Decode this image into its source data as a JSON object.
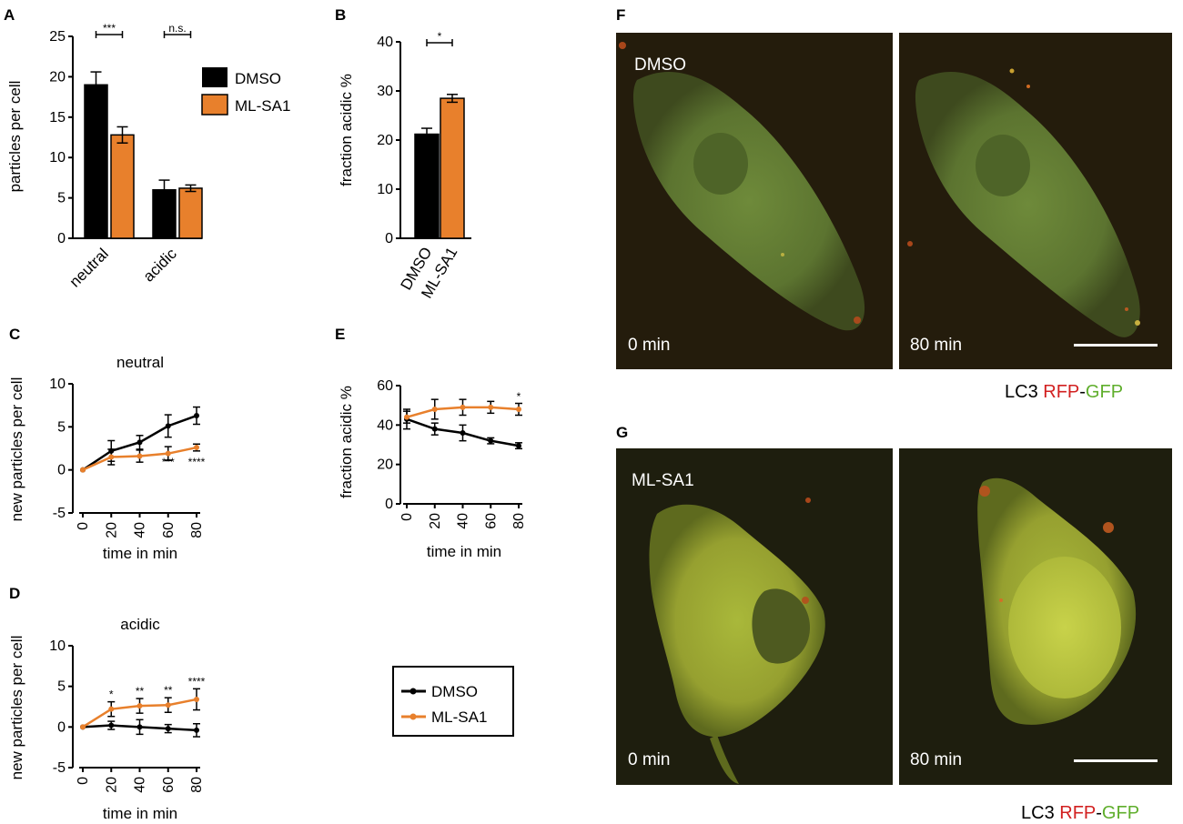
{
  "panels": {
    "A": {
      "label": "A",
      "chart_data": {
        "type": "bar",
        "categories": [
          "neutral",
          "acidic"
        ],
        "series": [
          {
            "name": "DMSO",
            "values": [
              19.0,
              6.0
            ],
            "errors": [
              1.6,
              1.2
            ]
          },
          {
            "name": "ML-SA1",
            "values": [
              12.8,
              6.2
            ],
            "errors": [
              1.0,
              0.4
            ]
          }
        ],
        "ylabel": "particles per cell",
        "ylim": [
          0,
          25
        ],
        "yticks": [
          0,
          5,
          10,
          15,
          20,
          25
        ],
        "significance": [
          "***",
          "n.s."
        ],
        "legend": "right"
      }
    },
    "B": {
      "label": "B",
      "chart_data": {
        "type": "bar",
        "categories": [
          "DMSO",
          "ML-SA1"
        ],
        "values": [
          21.2,
          28.5
        ],
        "errors": [
          1.2,
          0.8
        ],
        "ylabel": "fraction acidic %",
        "ylim": [
          0,
          40
        ],
        "yticks": [
          0,
          10,
          20,
          30,
          40
        ],
        "significance": [
          "*"
        ]
      }
    },
    "C": {
      "label": "C",
      "chart_data": {
        "type": "line",
        "title": "neutral",
        "x": [
          0,
          20,
          40,
          60,
          80
        ],
        "series": [
          {
            "name": "DMSO",
            "values": [
              0,
              2.2,
              3.2,
              5.1,
              6.3
            ],
            "errors": [
              0,
              1.2,
              0.8,
              1.3,
              1.0
            ]
          },
          {
            "name": "ML-SA1",
            "values": [
              0,
              1.5,
              1.6,
              1.9,
              2.6
            ],
            "errors": [
              0,
              0.9,
              0.7,
              0.8,
              0.4
            ]
          }
        ],
        "xlabel": "time in min",
        "ylabel": "new particles per cell",
        "ylim": [
          -5,
          10
        ],
        "yticks": [
          -5,
          0,
          5,
          10
        ],
        "annotations": [
          {
            "x": 60,
            "text": "***"
          },
          {
            "x": 80,
            "text": "****"
          }
        ]
      }
    },
    "D": {
      "label": "D",
      "chart_data": {
        "type": "line",
        "title": "acidic",
        "x": [
          0,
          20,
          40,
          60,
          80
        ],
        "series": [
          {
            "name": "DMSO",
            "values": [
              0,
              0.2,
              0,
              -0.2,
              -0.4
            ],
            "errors": [
              0,
              0.5,
              0.9,
              0.5,
              0.8
            ]
          },
          {
            "name": "ML-SA1",
            "values": [
              0,
              2.2,
              2.6,
              2.7,
              3.4
            ],
            "errors": [
              0,
              0.9,
              0.9,
              0.9,
              1.3
            ]
          }
        ],
        "xlabel": "time in min",
        "ylabel": "new particles per cell",
        "ylim": [
          -5,
          10
        ],
        "yticks": [
          -5,
          0,
          5,
          10
        ],
        "annotations": [
          {
            "x": 20,
            "text": "*"
          },
          {
            "x": 40,
            "text": "**"
          },
          {
            "x": 60,
            "text": "**"
          },
          {
            "x": 80,
            "text": "****"
          }
        ]
      }
    },
    "E": {
      "label": "E",
      "chart_data": {
        "type": "line",
        "x": [
          0,
          20,
          40,
          60,
          80
        ],
        "series": [
          {
            "name": "DMSO",
            "values": [
              43,
              38,
              36,
              32,
              29.5
            ],
            "errors": [
              5,
              3,
              4,
              1.5,
              1.5
            ]
          },
          {
            "name": "ML-SA1",
            "values": [
              44,
              48,
              49,
              49,
              48
            ],
            "errors": [
              3,
              5,
              4,
              3,
              3
            ]
          }
        ],
        "xlabel": "time in min",
        "ylabel": "fraction acidic %",
        "ylim": [
          0,
          60
        ],
        "yticks": [
          0,
          20,
          40,
          60
        ],
        "annotations": [
          {
            "x": 80,
            "text": "*"
          }
        ]
      }
    },
    "legend": {
      "entries": [
        "DMSO",
        "ML-SA1"
      ]
    },
    "F": {
      "label": "F",
      "condition": "DMSO",
      "time_left": "0 min",
      "time_right": "80 min",
      "caption_lc3": "LC3 ",
      "caption_rfp": "RFP",
      "caption_dash": "-",
      "caption_gfp": "GFP"
    },
    "G": {
      "label": "G",
      "condition": "ML-SA1",
      "time_left": "0 min",
      "time_right": "80 min",
      "caption_lc3": "LC3 ",
      "caption_rfp": "RFP",
      "caption_dash": "-",
      "caption_gfp": "GFP"
    }
  },
  "colors": {
    "dmso": "#000000",
    "mlsa1": "#e8802c",
    "rfp": "#d22020",
    "gfp": "#5fae2c",
    "micro_bg": "#231c0e"
  }
}
